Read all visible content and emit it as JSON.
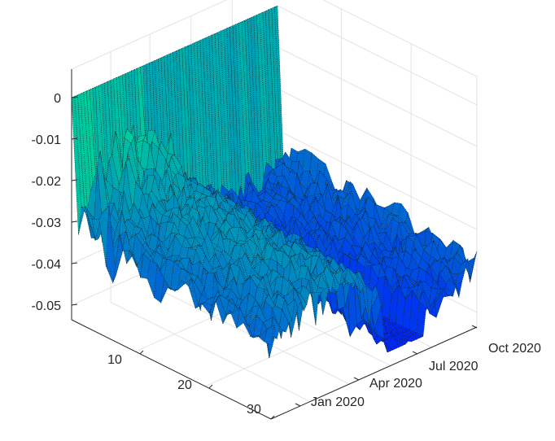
{
  "chart_data": {
    "type": "surface",
    "title": "",
    "xlabel": "",
    "ylabel": "",
    "zlabel": "",
    "grid": true,
    "legend": "none",
    "colormap": "winter",
    "z_axis": {
      "ticks": [
        0,
        -0.01,
        -0.02,
        -0.03,
        -0.04,
        -0.05
      ],
      "tick_labels": [
        "0",
        "-0.01",
        "-0.02",
        "-0.03",
        "-0.04",
        "-0.05"
      ],
      "range": [
        -0.054,
        0
      ]
    },
    "maturity_axis": {
      "ticks": [
        10,
        20,
        30
      ],
      "tick_labels": [
        "10",
        "20",
        "30"
      ],
      "range": [
        1,
        30
      ]
    },
    "date_axis": {
      "ticks": [
        "2020-01-01",
        "2020-04-01",
        "2020-07-01",
        "2020-10-01"
      ],
      "tick_labels": [
        "Jan 2020",
        "Apr 2020",
        "Jul 2020",
        "Oct 2020"
      ],
      "range": [
        "2019-10-01",
        "2020-12-31"
      ]
    },
    "grid_size": {
      "maturities": 30,
      "dates": 70
    },
    "surface_profile": {
      "maturity_1_value": 0,
      "maturity_2_value_range": [
        -0.046,
        -0.035
      ],
      "long_maturity_value_range": [
        -0.05,
        -0.024
      ],
      "late_2020_value_range": [
        -0.047,
        -0.024
      ]
    }
  }
}
